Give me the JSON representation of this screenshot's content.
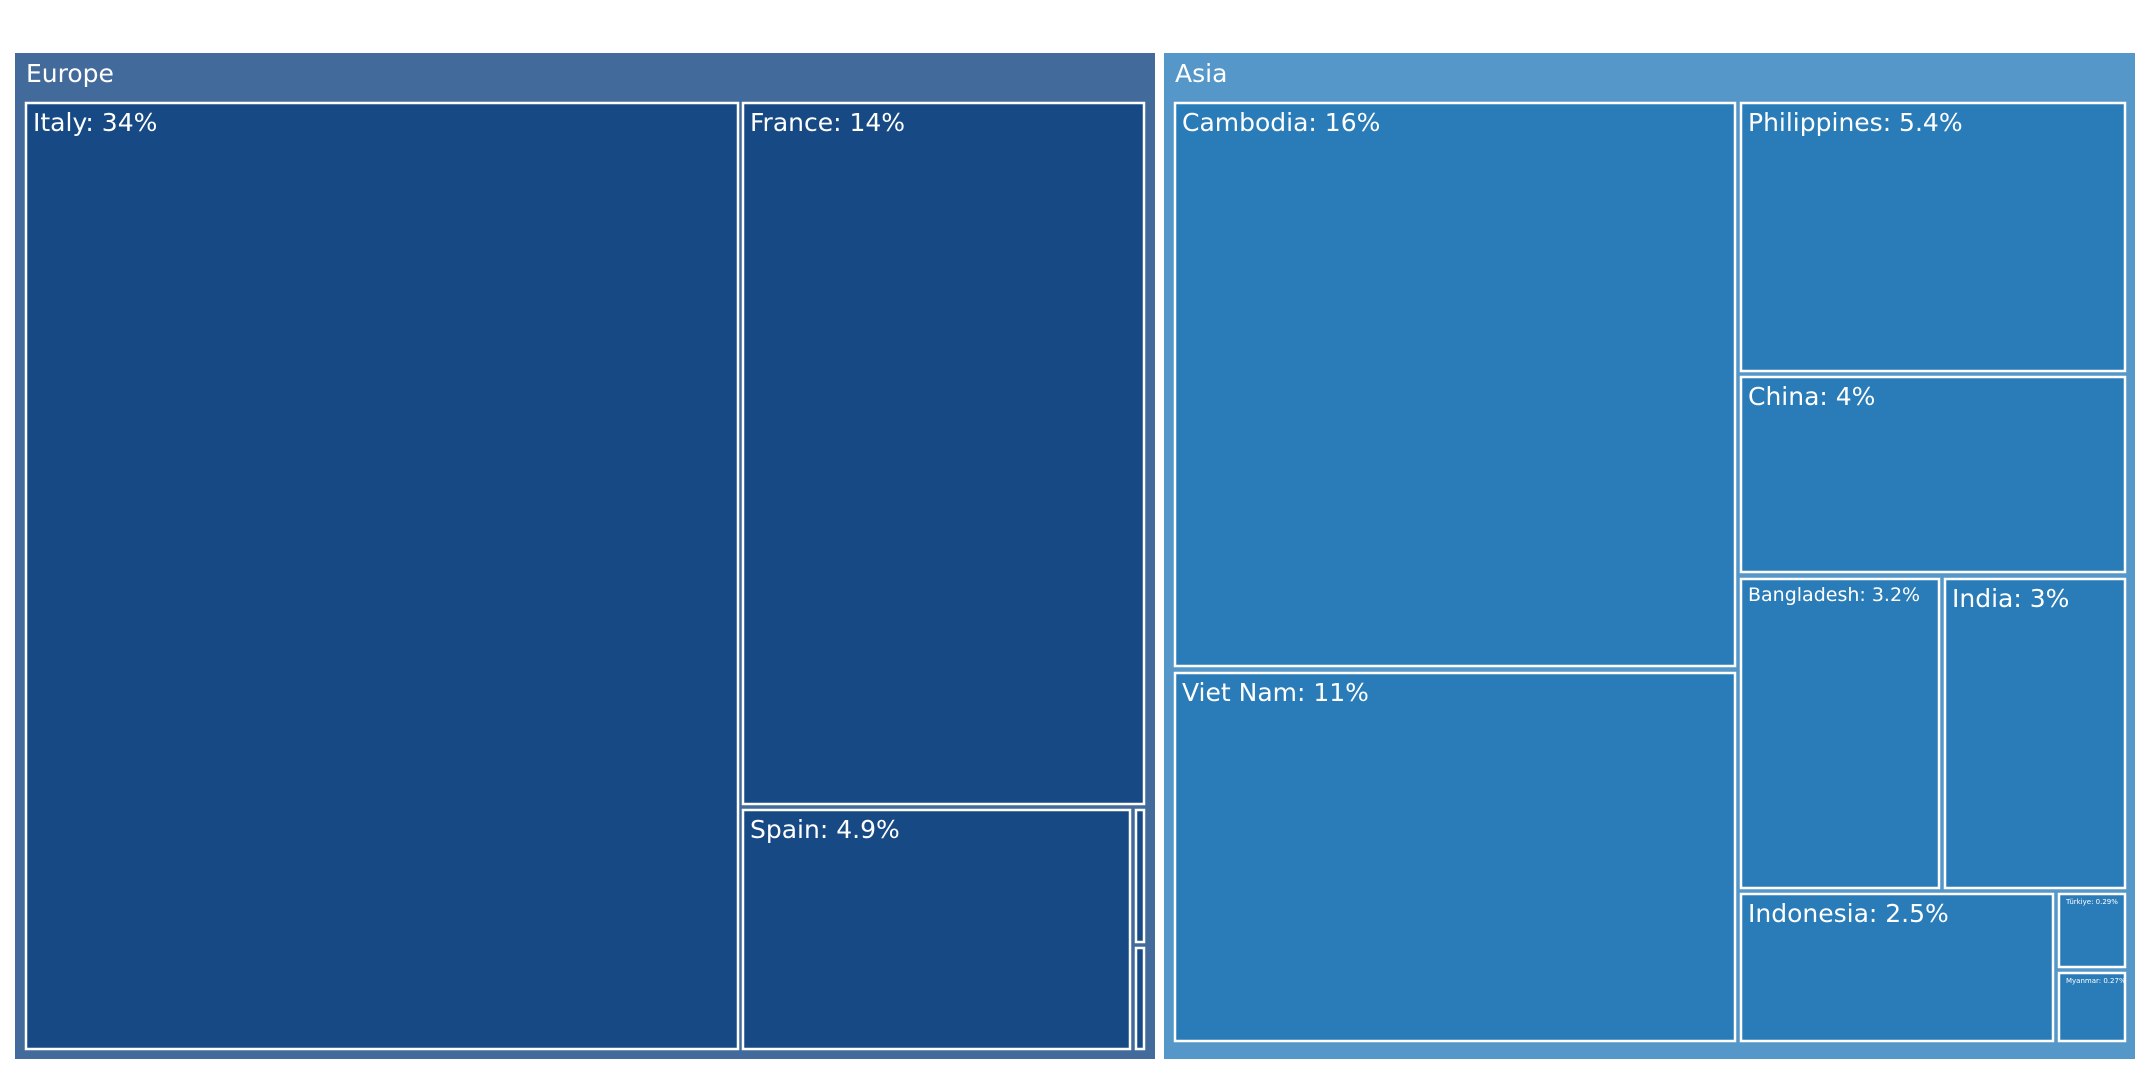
{
  "chart_data": {
    "type": "treemap",
    "title": "",
    "colors": {
      "europe_header": "#426b9b",
      "europe_leaf": "#174a84",
      "asia_header": "#5497c8",
      "asia_leaf": "#2a7cb8",
      "border": "#ffffff"
    },
    "groups": [
      {
        "name": "Europe",
        "children": [
          {
            "name": "Italy",
            "label": "Italy: 34%",
            "value": 34
          },
          {
            "name": "France",
            "label": "France: 14%",
            "value": 14
          },
          {
            "name": "Spain",
            "label": "Spain: 4.9%",
            "value": 4.9
          },
          {
            "name": "",
            "label": "",
            "value": 0.2
          },
          {
            "name": "",
            "label": "",
            "value": 0.15
          }
        ]
      },
      {
        "name": "Asia",
        "children": [
          {
            "name": "Cambodia",
            "label": "Cambodia: 16%",
            "value": 16
          },
          {
            "name": "Viet Nam",
            "label": "Viet Nam: 11%",
            "value": 11
          },
          {
            "name": "Philippines",
            "label": "Philippines: 5.4%",
            "value": 5.4
          },
          {
            "name": "China",
            "label": "China: 4%",
            "value": 4
          },
          {
            "name": "Bangladesh",
            "label": "Bangladesh: 3.2%",
            "value": 3.2
          },
          {
            "name": "India",
            "label": "India: 3%",
            "value": 3
          },
          {
            "name": "Indonesia",
            "label": "Indonesia: 2.5%",
            "value": 2.5
          },
          {
            "name": "Türkiye",
            "label": "Türkiye: 0.29%",
            "value": 0.29
          },
          {
            "name": "Myanmar",
            "label": "Myanmar: 0.27%",
            "value": 0.27
          }
        ]
      }
    ]
  }
}
